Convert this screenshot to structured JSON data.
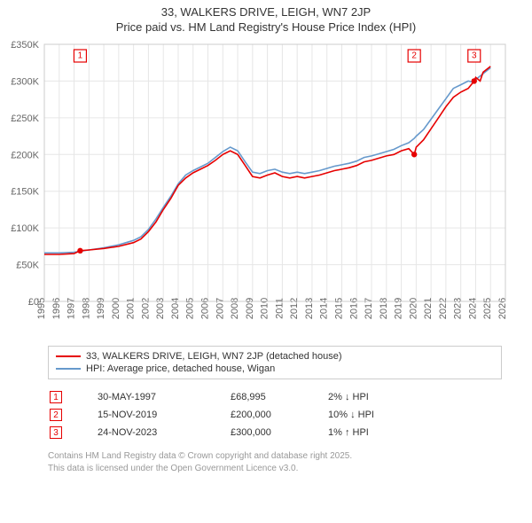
{
  "title": "33, WALKERS DRIVE, LEIGH, WN7 2JP",
  "subtitle": "Price paid vs. HM Land Registry's House Price Index (HPI)",
  "chart": {
    "type": "line",
    "background_color": "#ffffff",
    "grid_color": "#e6e6e6",
    "border_color": "#cccccc",
    "tick_label_color": "#666666",
    "tick_fontsize": 11,
    "title_fontsize": 13,
    "x": {
      "min": 1995,
      "max": 2026,
      "ticks": [
        1995,
        1996,
        1997,
        1998,
        1999,
        2000,
        2001,
        2002,
        2003,
        2004,
        2005,
        2006,
        2007,
        2008,
        2009,
        2010,
        2011,
        2012,
        2013,
        2014,
        2015,
        2016,
        2017,
        2018,
        2019,
        2020,
        2021,
        2022,
        2023,
        2024,
        2025,
        2026
      ]
    },
    "y": {
      "min": 0,
      "max": 350000,
      "tick_step": 50000,
      "tick_labels": [
        "£0",
        "£50K",
        "£100K",
        "£150K",
        "£200K",
        "£250K",
        "£300K",
        "£350K"
      ]
    },
    "series": [
      {
        "id": "property",
        "label": "33, WALKERS DRIVE, LEIGH, WN7 2JP (detached house)",
        "color": "#e60000",
        "line_width": 1.6,
        "points": [
          [
            1995.0,
            64000
          ],
          [
            1996.0,
            64000
          ],
          [
            1997.0,
            65000
          ],
          [
            1997.41,
            68995
          ],
          [
            1998.0,
            70000
          ],
          [
            1999.0,
            72000
          ],
          [
            2000.0,
            75000
          ],
          [
            2001.0,
            80000
          ],
          [
            2001.5,
            85000
          ],
          [
            2002.0,
            95000
          ],
          [
            2002.5,
            108000
          ],
          [
            2003.0,
            125000
          ],
          [
            2003.5,
            140000
          ],
          [
            2004.0,
            158000
          ],
          [
            2004.5,
            168000
          ],
          [
            2005.0,
            175000
          ],
          [
            2005.5,
            180000
          ],
          [
            2006.0,
            185000
          ],
          [
            2006.5,
            192000
          ],
          [
            2007.0,
            200000
          ],
          [
            2007.5,
            205000
          ],
          [
            2008.0,
            200000
          ],
          [
            2008.5,
            185000
          ],
          [
            2009.0,
            170000
          ],
          [
            2009.5,
            168000
          ],
          [
            2010.0,
            172000
          ],
          [
            2010.5,
            175000
          ],
          [
            2011.0,
            170000
          ],
          [
            2011.5,
            168000
          ],
          [
            2012.0,
            170000
          ],
          [
            2012.5,
            168000
          ],
          [
            2013.0,
            170000
          ],
          [
            2013.5,
            172000
          ],
          [
            2014.0,
            175000
          ],
          [
            2014.5,
            178000
          ],
          [
            2015.0,
            180000
          ],
          [
            2015.5,
            182000
          ],
          [
            2016.0,
            185000
          ],
          [
            2016.5,
            190000
          ],
          [
            2017.0,
            192000
          ],
          [
            2017.5,
            195000
          ],
          [
            2018.0,
            198000
          ],
          [
            2018.5,
            200000
          ],
          [
            2019.0,
            205000
          ],
          [
            2019.5,
            208000
          ],
          [
            2019.87,
            200000
          ],
          [
            2020.0,
            210000
          ],
          [
            2020.5,
            220000
          ],
          [
            2021.0,
            235000
          ],
          [
            2021.5,
            250000
          ],
          [
            2022.0,
            265000
          ],
          [
            2022.5,
            278000
          ],
          [
            2023.0,
            285000
          ],
          [
            2023.5,
            290000
          ],
          [
            2023.9,
            300000
          ],
          [
            2024.0,
            305000
          ],
          [
            2024.3,
            300000
          ],
          [
            2024.5,
            312000
          ],
          [
            2025.0,
            320000
          ]
        ]
      },
      {
        "id": "hpi",
        "label": "HPI: Average price, detached house, Wigan",
        "color": "#6699cc",
        "line_width": 1.6,
        "points": [
          [
            1995.0,
            66000
          ],
          [
            1996.0,
            66000
          ],
          [
            1997.0,
            67000
          ],
          [
            1998.0,
            70000
          ],
          [
            1999.0,
            73000
          ],
          [
            2000.0,
            77000
          ],
          [
            2001.0,
            83000
          ],
          [
            2001.5,
            88000
          ],
          [
            2002.0,
            98000
          ],
          [
            2002.5,
            112000
          ],
          [
            2003.0,
            128000
          ],
          [
            2003.5,
            143000
          ],
          [
            2004.0,
            160000
          ],
          [
            2004.5,
            172000
          ],
          [
            2005.0,
            178000
          ],
          [
            2005.5,
            183000
          ],
          [
            2006.0,
            188000
          ],
          [
            2006.5,
            196000
          ],
          [
            2007.0,
            204000
          ],
          [
            2007.5,
            210000
          ],
          [
            2008.0,
            205000
          ],
          [
            2008.5,
            190000
          ],
          [
            2009.0,
            176000
          ],
          [
            2009.5,
            174000
          ],
          [
            2010.0,
            178000
          ],
          [
            2010.5,
            180000
          ],
          [
            2011.0,
            176000
          ],
          [
            2011.5,
            174000
          ],
          [
            2012.0,
            176000
          ],
          [
            2012.5,
            174000
          ],
          [
            2013.0,
            176000
          ],
          [
            2013.5,
            178000
          ],
          [
            2014.0,
            181000
          ],
          [
            2014.5,
            184000
          ],
          [
            2015.0,
            186000
          ],
          [
            2015.5,
            188000
          ],
          [
            2016.0,
            191000
          ],
          [
            2016.5,
            196000
          ],
          [
            2017.0,
            198000
          ],
          [
            2017.5,
            201000
          ],
          [
            2018.0,
            204000
          ],
          [
            2018.5,
            207000
          ],
          [
            2019.0,
            212000
          ],
          [
            2019.5,
            216000
          ],
          [
            2019.87,
            222000
          ],
          [
            2020.0,
            225000
          ],
          [
            2020.5,
            234000
          ],
          [
            2021.0,
            248000
          ],
          [
            2021.5,
            262000
          ],
          [
            2022.0,
            276000
          ],
          [
            2022.5,
            290000
          ],
          [
            2023.0,
            295000
          ],
          [
            2023.5,
            300000
          ],
          [
            2023.9,
            298000
          ],
          [
            2024.0,
            302000
          ],
          [
            2024.5,
            310000
          ],
          [
            2025.0,
            318000
          ]
        ]
      }
    ],
    "sale_markers": [
      {
        "n": 1,
        "x": 1997.41,
        "y": 68995,
        "color": "#e60000"
      },
      {
        "n": 2,
        "x": 2019.87,
        "y": 200000,
        "color": "#e60000"
      },
      {
        "n": 3,
        "x": 2023.9,
        "y": 300000,
        "color": "#e60000"
      }
    ],
    "marker_box": {
      "fill": "#ffffff",
      "size": 14
    }
  },
  "legend": {
    "border_color": "#cccccc",
    "rows": [
      {
        "color": "#e60000",
        "label": "33, WALKERS DRIVE, LEIGH, WN7 2JP (detached house)"
      },
      {
        "color": "#6699cc",
        "label": "HPI: Average price, detached house, Wigan"
      }
    ]
  },
  "sales": [
    {
      "n": 1,
      "color": "#e60000",
      "date": "30-MAY-1997",
      "price": "£68,995",
      "diff": "2% ↓ HPI"
    },
    {
      "n": 2,
      "color": "#e60000",
      "date": "15-NOV-2019",
      "price": "£200,000",
      "diff": "10% ↓ HPI"
    },
    {
      "n": 3,
      "color": "#e60000",
      "date": "24-NOV-2023",
      "price": "£300,000",
      "diff": "1% ↑ HPI"
    }
  ],
  "footnote": {
    "line1": "Contains HM Land Registry data © Crown copyright and database right 2025.",
    "line2": "This data is licensed under the Open Government Licence v3.0.",
    "color": "#999999",
    "fontsize": 10
  }
}
